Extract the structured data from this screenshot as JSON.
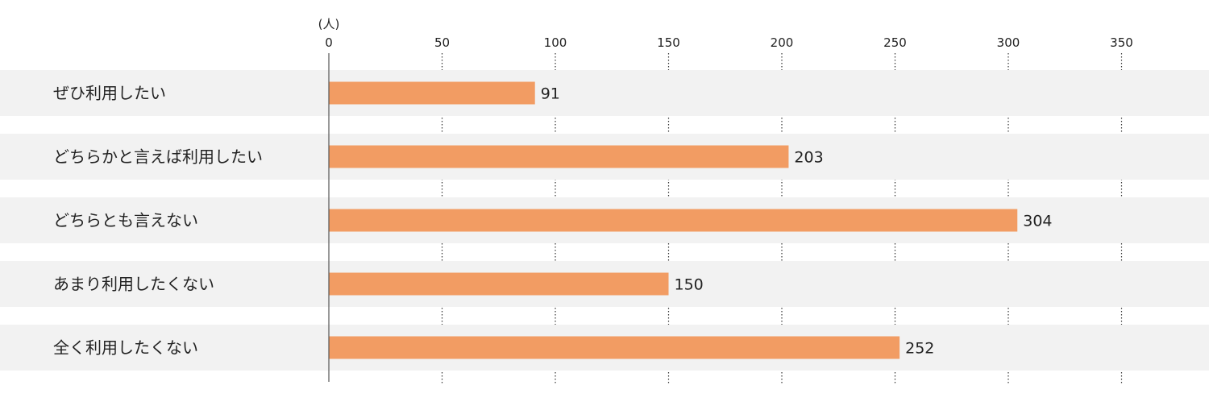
{
  "chart_data": {
    "type": "bar",
    "orientation": "horizontal",
    "unit_label": "(人)",
    "categories": [
      "ぜひ利用したい",
      "どちらかと言えば利用したい",
      "どちらとも言えない",
      "あまり利用したくない",
      "全く利用したくない"
    ],
    "values": [
      91,
      203,
      304,
      150,
      252
    ],
    "data_labels": [
      "91",
      "203",
      "304",
      "150",
      "252"
    ],
    "x_ticks": [
      "0",
      "50",
      "100",
      "150",
      "200",
      "250",
      "300",
      "350"
    ],
    "x_tick_values": [
      0,
      50,
      100,
      150,
      200,
      250,
      300,
      350
    ],
    "xlim": [
      0,
      380
    ],
    "grid": "dotted vertical",
    "bar_color": "#f29c63",
    "band_color": "#f2f2f2",
    "axis_color": "#555555",
    "text_color": "#222222"
  }
}
